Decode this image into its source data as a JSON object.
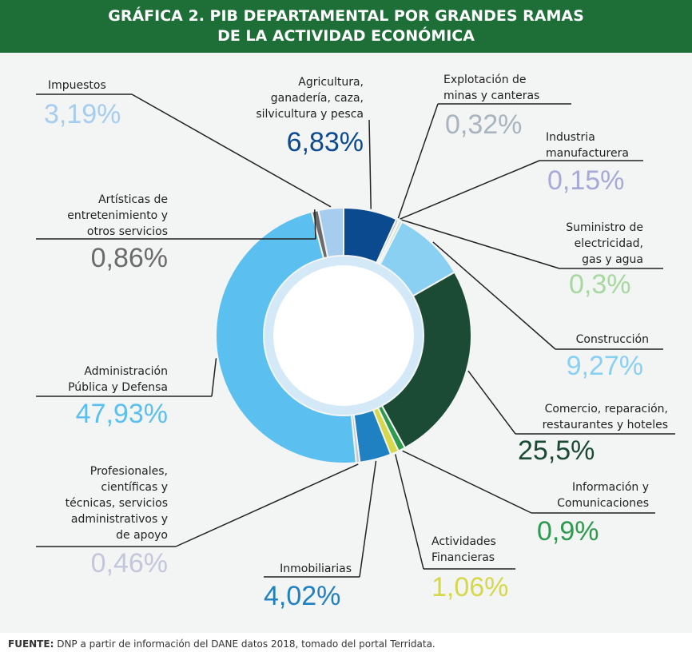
{
  "chart_data": {
    "type": "pie",
    "donut": true,
    "title": "GRÁFICA 2. PIB DEPARTAMENTAL POR GRANDES RAMAS\nDE LA ACTIVIDAD ECONÓMICA",
    "categories": [
      "Agricultura,\nganadería, caza,\nsilvicultura y pesca",
      "Explotación de\nminas y canteras",
      "Industria\nmanufacturera",
      "Suministro de\nelectricidad,\ngas y agua",
      "Construcción",
      "Comercio, reparación,\nrestaurantes y hoteles",
      "Información y\nComunicaciones",
      "Actividades\nFinancieras",
      "Inmobiliarias",
      "Profesionales,\ncientíficas y\ntécnicas, servicios\nadministrativos y\nde apoyo",
      "Administración\nPública y Defensa",
      "Artísticas de\nentretenimiento y\notros servicios",
      "Impuestos"
    ],
    "values": [
      6.83,
      0.32,
      0.15,
      0.3,
      9.27,
      25.5,
      0.9,
      1.06,
      4.02,
      0.46,
      47.93,
      0.86,
      3.19
    ],
    "value_labels": [
      "6,83%",
      "0,32%",
      "0,15%",
      "0,3%",
      "9,27%",
      "25,5%",
      "0,9%",
      "1,06%",
      "4,02%",
      "0,46%",
      "47,93%",
      "0,86%",
      "3,19%"
    ],
    "colors": [
      "#0b4a8e",
      "#a9b4bf",
      "#a7a9d6",
      "#a6d8a0",
      "#8ad0f3",
      "#1b4a35",
      "#2e9a4e",
      "#d6d84a",
      "#1f80c2",
      "#c4c6dc",
      "#5bc0ef",
      "#6b6b6b",
      "#a7cdee"
    ],
    "footer_label": "FUENTE:",
    "footer_text": "DNP a partir de información del DANE datos 2018, tomado del portal Terridata."
  }
}
